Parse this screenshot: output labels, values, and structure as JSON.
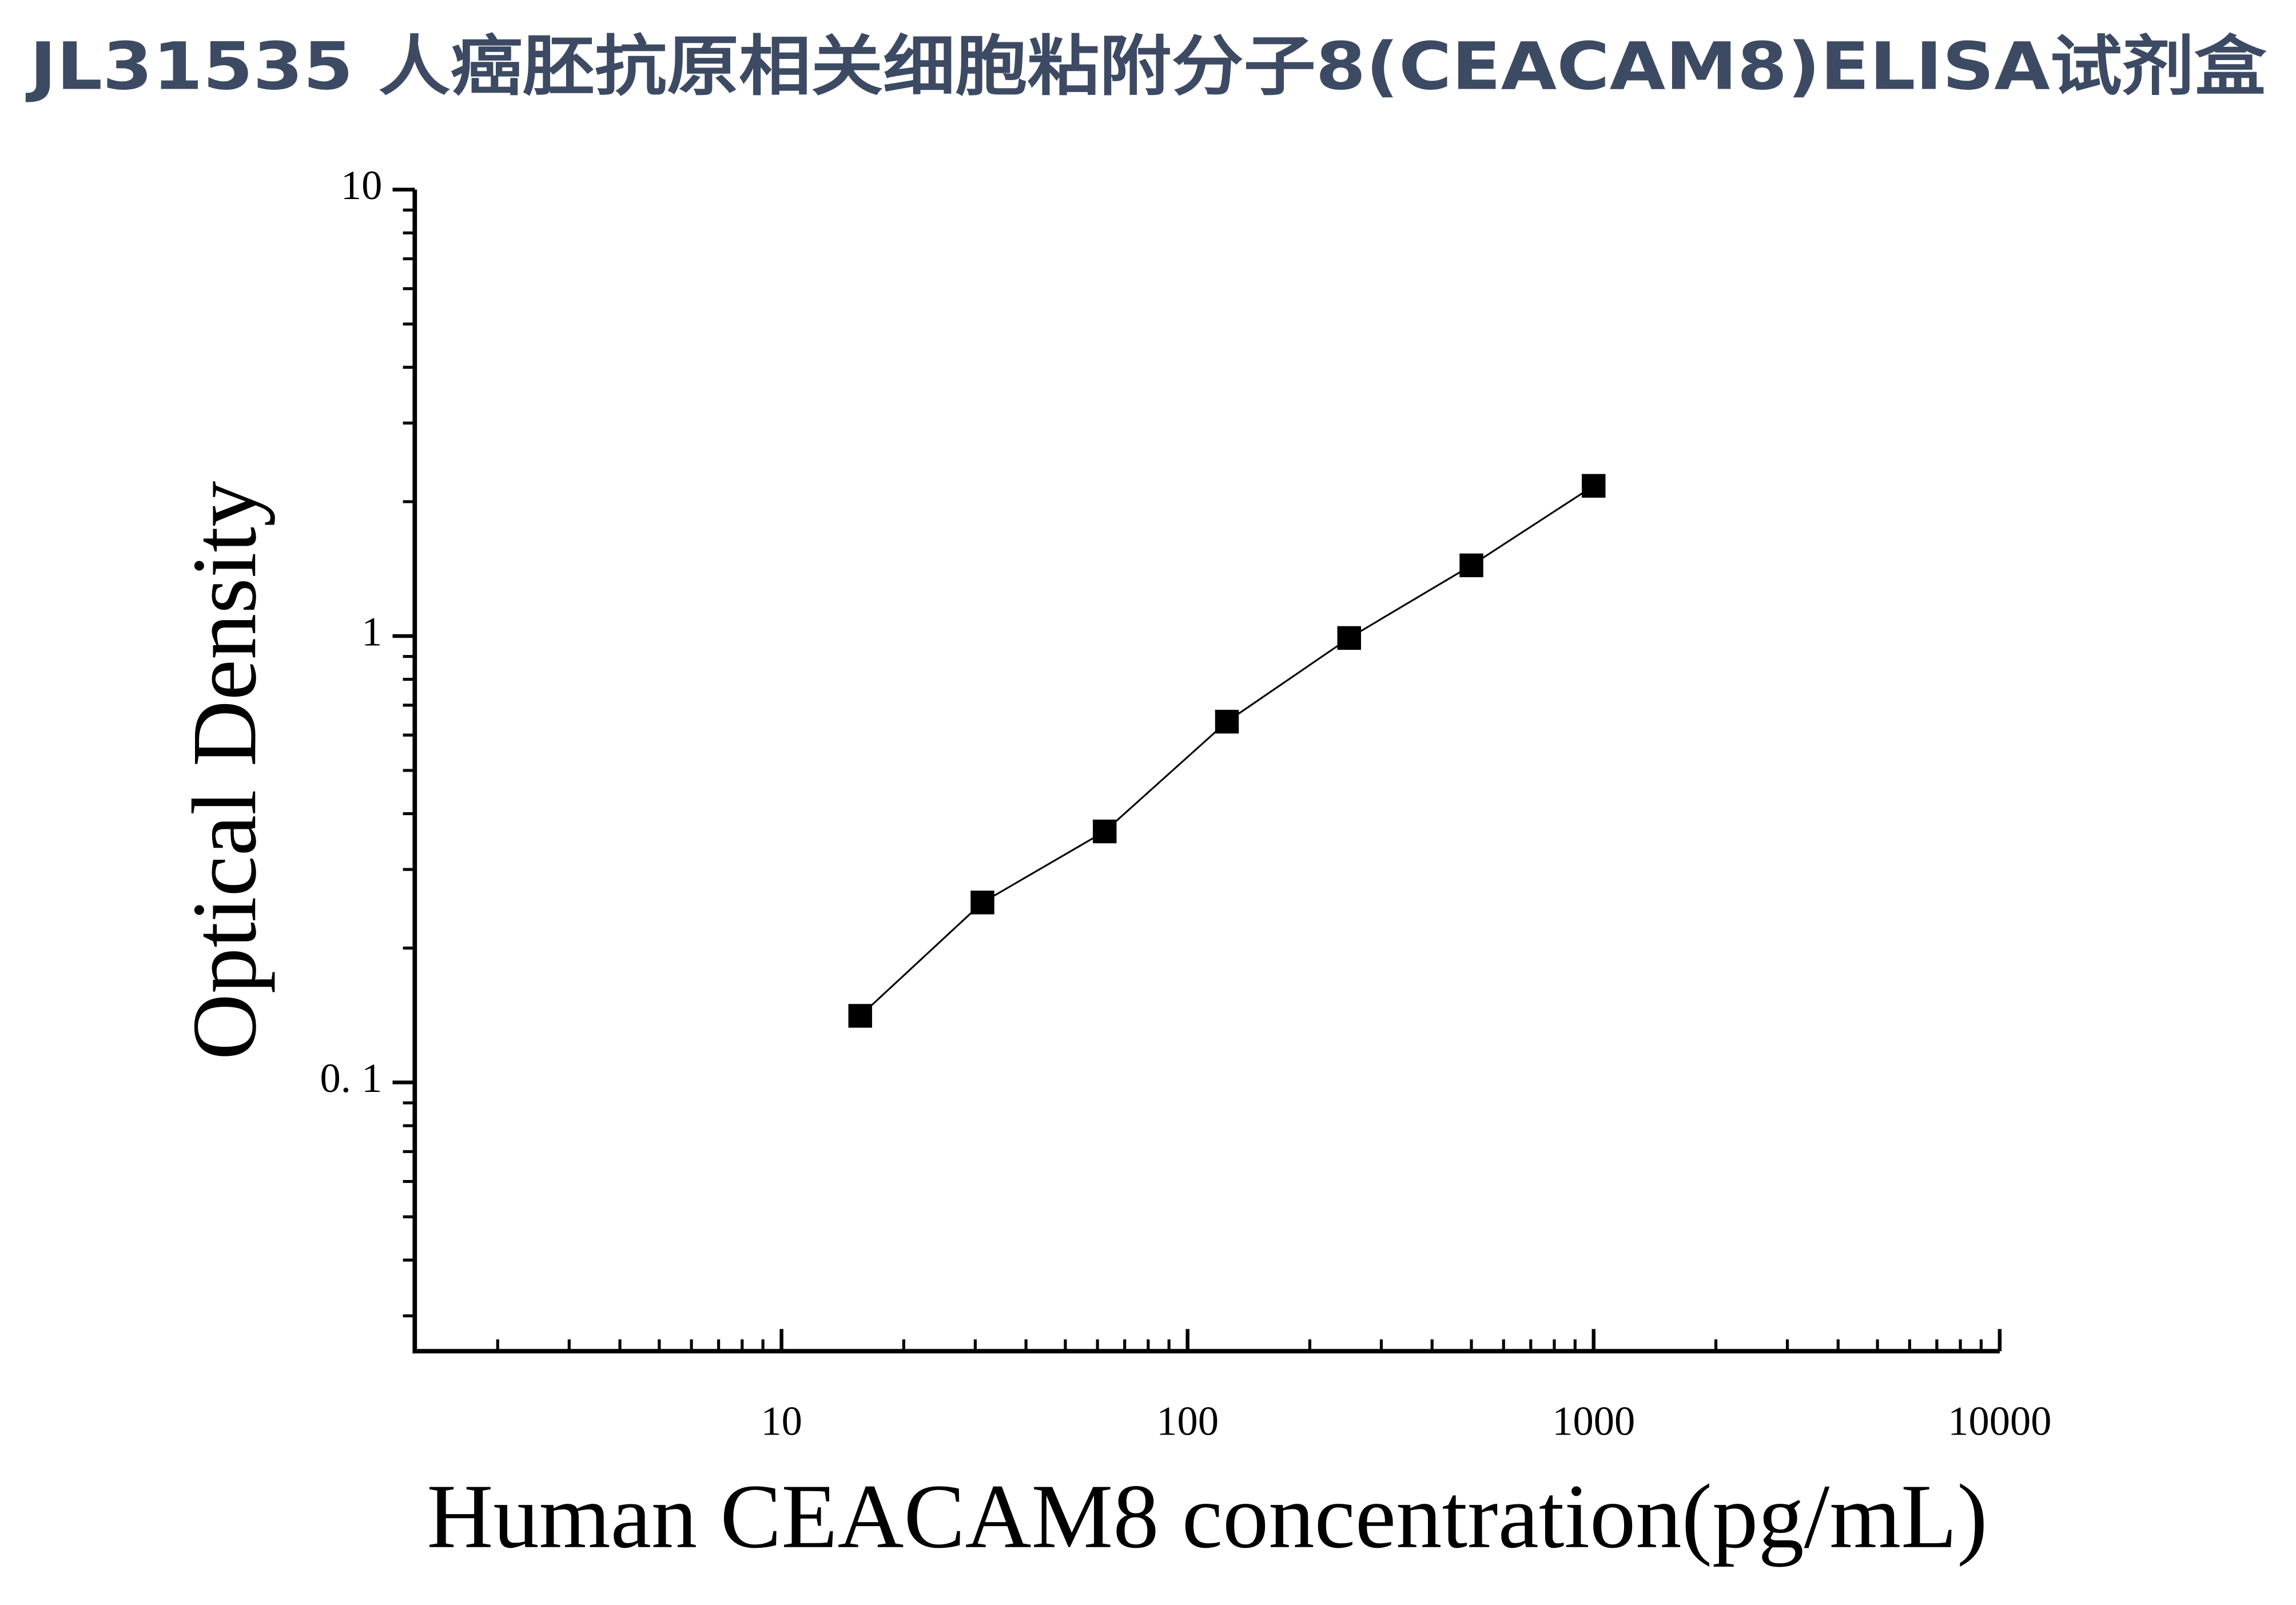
{
  "chart_data": {
    "type": "scatter",
    "title": "JL31535 人癌胚抗原相关细胞粘附分子8(CEACAM8)ELISA试剂盒",
    "x_label": "Human CEACAM8 concentration(pg/mL)",
    "y_label": "Optical Density",
    "x_log": true,
    "y_log": true,
    "minor_ticks": true,
    "fit_line": true,
    "color": "#000000",
    "x": [
      15.625,
      31.25,
      62.5,
      125,
      250,
      500,
      1000
    ],
    "values": [
      0.141,
      0.253,
      0.365,
      0.643,
      0.99,
      1.44,
      2.17
    ],
    "xlim": [
      1.25,
      10000
    ],
    "xticks": [
      10,
      100,
      1000,
      10000
    ],
    "ylim": [
      0.025,
      10
    ],
    "yticks": [
      {
        "value": 0.1,
        "label": "0. 1"
      },
      1,
      10
    ]
  }
}
